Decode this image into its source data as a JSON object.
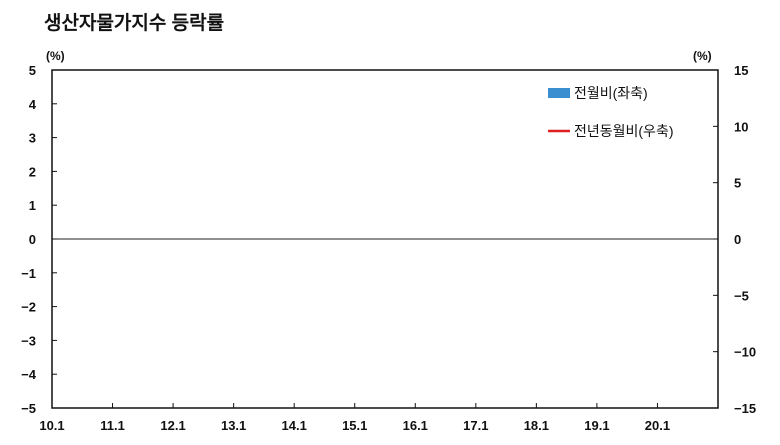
{
  "title": "생산자물가지수 등락률",
  "colors": {
    "bar": "#3a8fd0",
    "line": "#e02020",
    "axis": "#111111",
    "zero": "#222222"
  },
  "chart_data": {
    "type": "bar",
    "title": "생산자물가지수 등락률",
    "x_ticks": [
      "10.1",
      "11.1",
      "12.1",
      "13.1",
      "14.1",
      "15.1",
      "16.1",
      "17.1",
      "18.1",
      "19.1",
      "20.1"
    ],
    "y_left": {
      "unit": "(%)",
      "min": -5,
      "max": 5,
      "ticks": [
        "5",
        "4",
        "3",
        "2",
        "1",
        "0",
        "−1",
        "−2",
        "−3",
        "−4",
        "−5"
      ]
    },
    "y_right": {
      "unit": "(%)",
      "min": -15,
      "max": 15,
      "ticks": [
        "15",
        "10",
        "5",
        "0",
        "−5",
        "−10",
        "−15"
      ]
    },
    "legend_placement": "top-right",
    "series": [
      {
        "name": "전월비(좌축)",
        "kind": "bar",
        "axis": "left",
        "values": []
      },
      {
        "name": "전년동월비(우축)",
        "kind": "line",
        "axis": "right",
        "values": []
      }
    ]
  }
}
